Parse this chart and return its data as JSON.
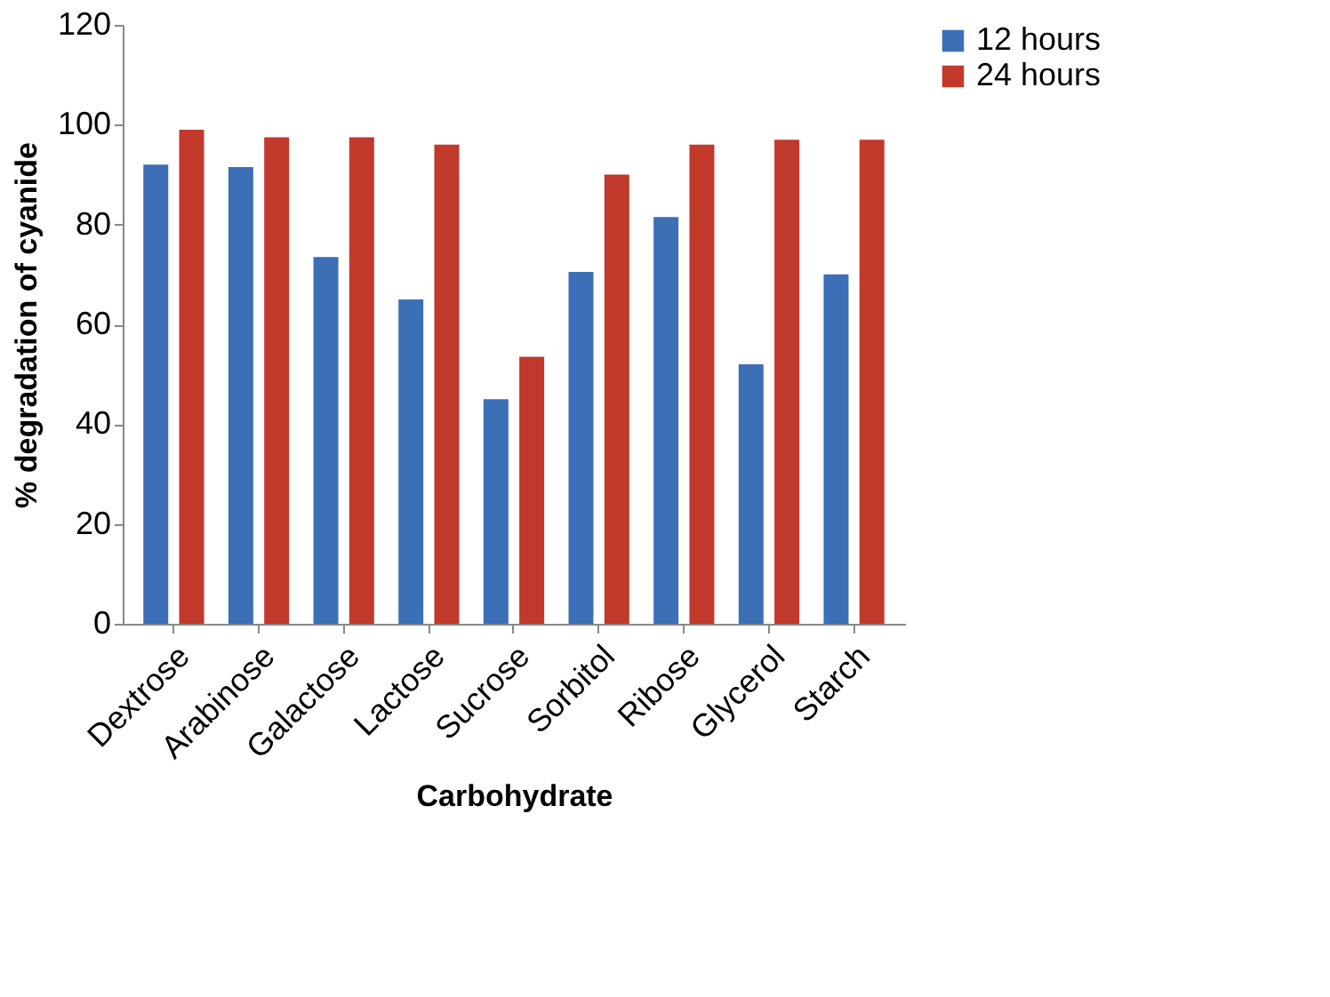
{
  "chart_data": {
    "type": "bar",
    "xlabel": "Carbohydrate",
    "ylabel": "% degradation of cyanide",
    "categories": [
      "Dextrose",
      "Arabinose",
      "Galactose",
      "Lactose",
      "Sucrose",
      "Sorbitol",
      "Ribose",
      "Glycerol",
      "Starch"
    ],
    "series": [
      {
        "name": "12 hours",
        "color": "#3c6fb6",
        "values": [
          92,
          91.5,
          73.5,
          65,
          45,
          70.5,
          81.5,
          52,
          70
        ]
      },
      {
        "name": "24 hours",
        "color": "#c0392b",
        "values": [
          99,
          97.5,
          97.5,
          96,
          53.5,
          90,
          96,
          97,
          97
        ]
      }
    ],
    "ylim": [
      0,
      120
    ],
    "yticks": [
      0,
      20,
      40,
      60,
      80,
      100,
      120
    ],
    "grid": false,
    "legend": "right"
  }
}
